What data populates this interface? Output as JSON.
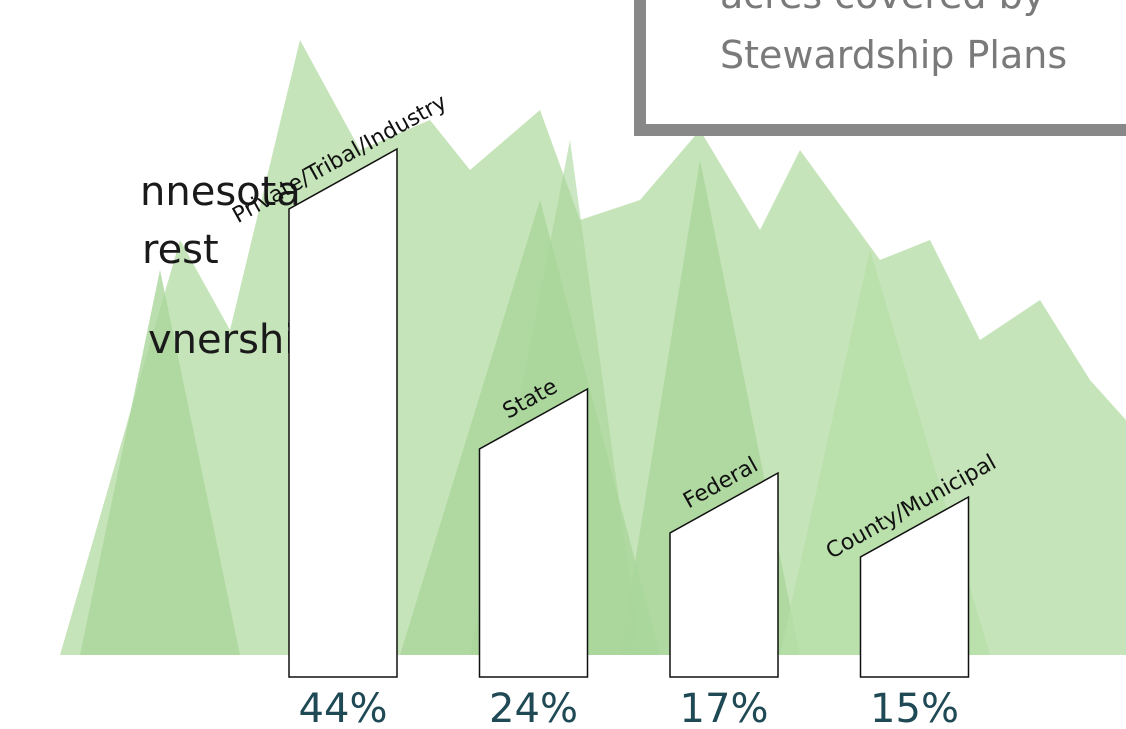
{
  "chart_data": {
    "type": "bar",
    "title_lines": [
      "nnesota",
      "rest",
      "vnership"
    ],
    "box_lines": [
      "acres covered by",
      "Stewardship Plans"
    ],
    "categories": [
      "Private/Tribal/Industry",
      "State",
      "Federal",
      "County/Municipal"
    ],
    "values": [
      44,
      24,
      17,
      15
    ],
    "value_labels": [
      "44%",
      "24%",
      "17%",
      "15%"
    ],
    "color": "#ffffff"
  }
}
